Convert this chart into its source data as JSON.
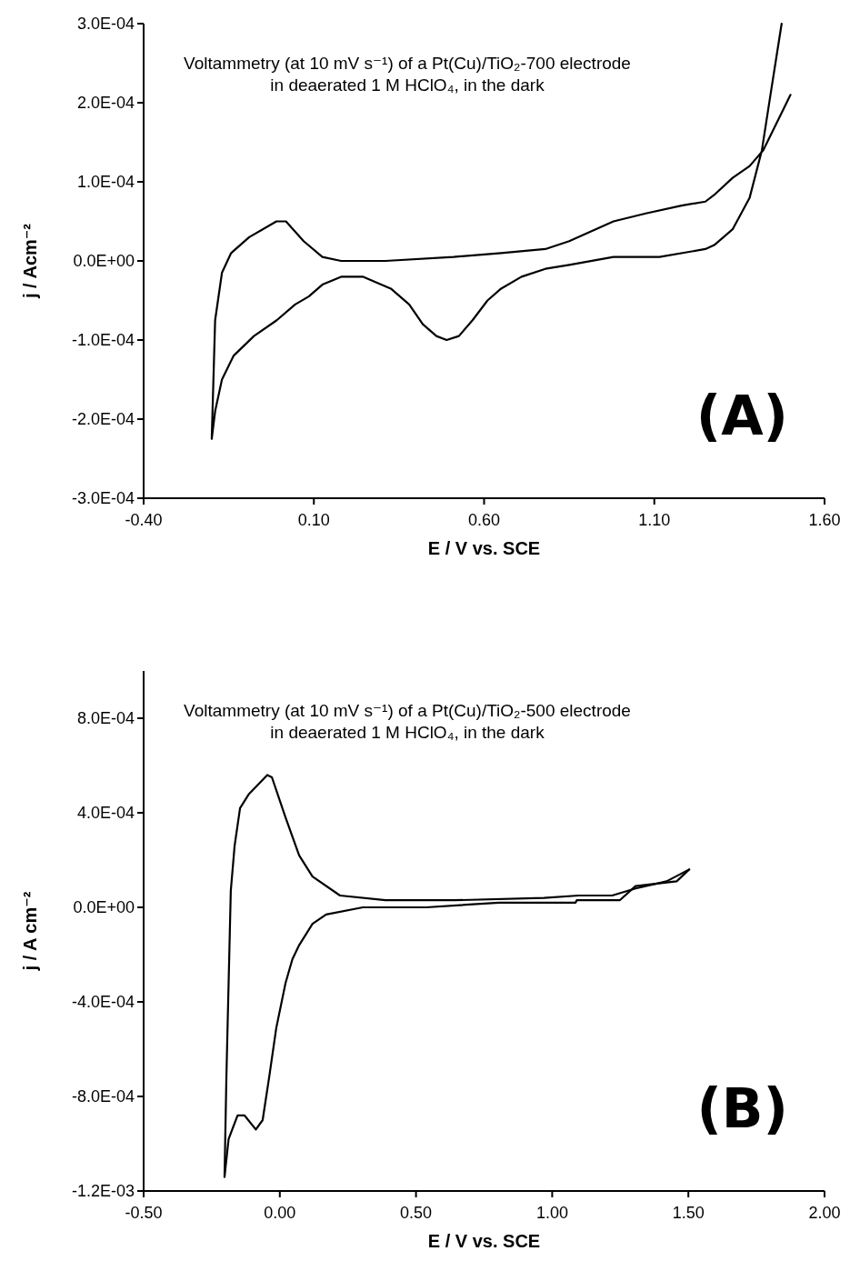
{
  "chart_data": [
    {
      "type": "line",
      "title": "Voltammetry (at 10 mV s⁻¹) of a Pt(Cu)/TiO₂-700 electrode in deaerated 1 M HClO₄, in the dark",
      "xlabel": "E / V vs. SCE",
      "ylabel": "j / Acm⁻²",
      "annotations": [
        "(A)"
      ],
      "xlim": [
        -0.4,
        1.6
      ],
      "ylim": [
        -0.0003,
        0.0003
      ],
      "xticks": [
        {
          "value": -0.4,
          "label": "-0.40"
        },
        {
          "value": 0.1,
          "label": "0.10"
        },
        {
          "value": 0.6,
          "label": "0.60"
        },
        {
          "value": 1.1,
          "label": "1.10"
        },
        {
          "value": 1.6,
          "label": "1.60"
        }
      ],
      "yticks": [
        {
          "value": -0.0003,
          "label": "-3.0E-04"
        },
        {
          "value": -0.0002,
          "label": "-2.0E-04"
        },
        {
          "value": -0.0001,
          "label": "-1.0E-04"
        },
        {
          "value": 0,
          "label": "0.0E+00"
        },
        {
          "value": 0.0001,
          "label": "1.0E-04"
        },
        {
          "value": 0.0002,
          "label": "2.0E-04"
        },
        {
          "value": 0.0003,
          "label": "3.0E-04"
        }
      ],
      "grid": false,
      "legend": false,
      "marker": "none",
      "line_style": "solid",
      "series": [
        {
          "color": "#000000",
          "x": [
            1.474,
            1.443,
            1.416,
            1.38,
            1.33,
            1.276,
            1.25,
            1.115,
            0.98,
            0.85,
            0.78,
            0.71,
            0.65,
            0.61,
            0.566,
            0.526,
            0.49,
            0.46,
            0.42,
            0.38,
            0.326,
            0.245,
            0.18,
            0.125,
            0.085,
            0.045,
            -0.009,
            -0.076,
            -0.136,
            -0.17,
            -0.19,
            -0.2,
            -0.19,
            -0.17,
            -0.143,
            -0.09,
            -0.01,
            0.018,
            0.07,
            0.125,
            0.18,
            0.31,
            0.51,
            0.65,
            0.78,
            0.85,
            0.98,
            1.075,
            1.18,
            1.25,
            1.28,
            1.33,
            1.38,
            1.42,
            1.46,
            1.5
          ],
          "values": [
            0.0003,
            0.000215,
            0.00014,
            8e-05,
            4e-05,
            2e-05,
            1.5e-05,
            5e-06,
            5e-06,
            -5e-06,
            -1e-05,
            -2e-05,
            -3.5e-05,
            -5e-05,
            -7.5e-05,
            -9.5e-05,
            -0.0001,
            -9.5e-05,
            -8e-05,
            -5.5e-05,
            -3.5e-05,
            -2e-05,
            -2e-05,
            -3e-05,
            -4.5e-05,
            -5.5e-05,
            -7.5e-05,
            -9.5e-05,
            -0.00012,
            -0.00015,
            -0.00019,
            -0.000225,
            -7.5e-05,
            -1.5e-05,
            1e-05,
            3e-05,
            5e-05,
            5e-05,
            2.5e-05,
            5e-06,
            0,
            0,
            5e-06,
            1e-05,
            1.5e-05,
            2.5e-05,
            5e-05,
            6e-05,
            7e-05,
            7.5e-05,
            8.5e-05,
            0.000105,
            0.00012,
            0.00014,
            0.000175,
            0.00021
          ]
        }
      ]
    },
    {
      "type": "line",
      "title": "Voltammetry (at 10 mV s⁻¹) of a Pt(Cu)/TiO₂-500 electrode in deaerated 1 M HClO₄, in the dark",
      "xlabel": "E / V vs. SCE",
      "ylabel": "j / A cm⁻²",
      "annotations": [
        "(B)"
      ],
      "xlim": [
        -0.5,
        2.0
      ],
      "ylim": [
        -0.0012,
        0.001
      ],
      "xticks": [
        {
          "value": -0.5,
          "label": "-0.50"
        },
        {
          "value": 0,
          "label": "0.00"
        },
        {
          "value": 0.5,
          "label": "0.50"
        },
        {
          "value": 1,
          "label": "1.00"
        },
        {
          "value": 1.5,
          "label": "1.50"
        },
        {
          "value": 2,
          "label": "2.00"
        }
      ],
      "yticks": [
        {
          "value": -0.0012,
          "label": "-1.2E-03"
        },
        {
          "value": -0.0008,
          "label": "-8.0E-04"
        },
        {
          "value": -0.0004,
          "label": "-4.0E-04"
        },
        {
          "value": 0,
          "label": "0.0E+00"
        },
        {
          "value": 0.0004,
          "label": "4.0E-04"
        },
        {
          "value": 0.0008,
          "label": "8.0E-04"
        }
      ],
      "grid": false,
      "legend": false,
      "marker": "none",
      "line_style": "solid",
      "series": [
        {
          "color": "#000000",
          "x": [
            1.503,
            1.457,
            1.306,
            1.248,
            1.09,
            1.086,
            0.805,
            0.538,
            0.305,
            0.17,
            0.12,
            0.071,
            0.046,
            0.021,
            -0.013,
            -0.038,
            -0.063,
            -0.088,
            -0.13,
            -0.155,
            -0.188,
            -0.203
          ],
          "values": [
            0.00016,
            0.00011,
            9e-05,
            3e-05,
            3e-05,
            2e-05,
            2e-05,
            0,
            0,
            -3e-05,
            -7e-05,
            -0.00016,
            -0.00022,
            -0.00032,
            -0.00051,
            -0.00071,
            -0.0009,
            -0.00094,
            -0.00088,
            -0.00088,
            -0.00098,
            -0.00114
          ]
        },
        {
          "color": "#000000",
          "x": [
            -0.203,
            -0.196,
            -0.18,
            -0.166,
            -0.146,
            -0.113,
            -0.046,
            -0.029,
            0.021,
            0.071,
            0.12,
            0.221,
            0.388,
            0.64,
            0.97,
            1.097,
            1.22,
            1.306,
            1.42,
            1.503
          ],
          "values": [
            -0.00114,
            -0.00071,
            7e-05,
            0.00026,
            0.00042,
            0.00048,
            0.00056,
            0.00055,
            0.00038,
            0.00022,
            0.00013,
            5e-05,
            3e-05,
            3e-05,
            4e-05,
            5e-05,
            5e-05,
            8e-05,
            0.00011,
            0.00016
          ]
        }
      ]
    }
  ]
}
